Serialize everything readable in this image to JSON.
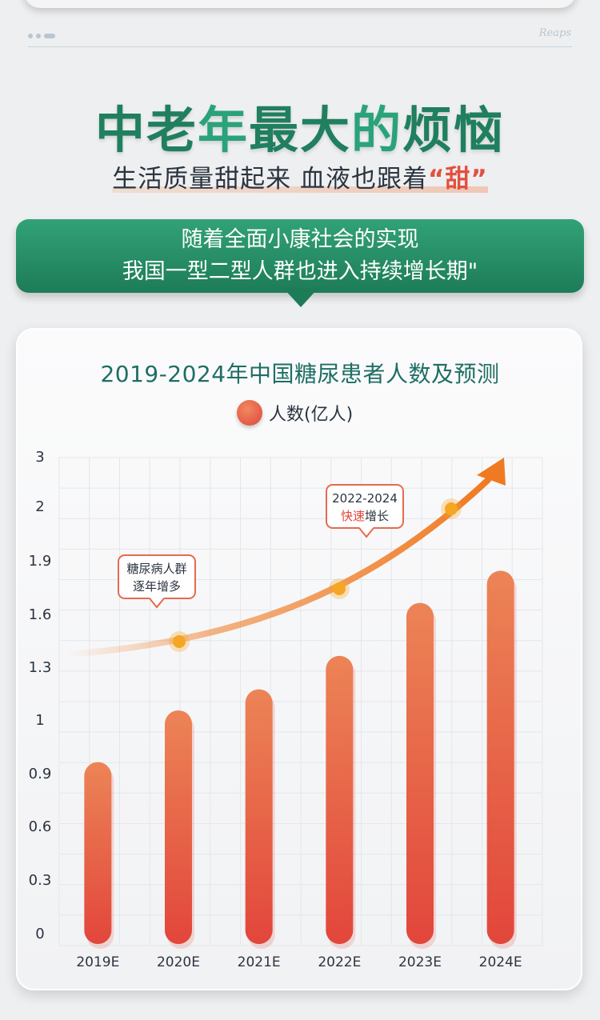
{
  "header": {
    "brand": "Reaps"
  },
  "headline": {
    "part1": "中老",
    "part2": "年",
    "part3": "最大",
    "part4": "的",
    "part5": "烦恼"
  },
  "subhead": {
    "text": "生活质量甜起来 血液也跟着",
    "highlight": "“甜”"
  },
  "banner": {
    "line1": "随着全面小康社会的实现",
    "line2": "我国一型二型人群也进入持续增长期\""
  },
  "chart_data": {
    "type": "bar",
    "title": "2019-2024年中国糖尿患者人数及预测",
    "categories": [
      "2019E",
      "2020E",
      "2021E",
      "2022E",
      "2023E",
      "2024E"
    ],
    "series": [
      {
        "name": "人数(亿人)",
        "values": [
          0.92,
          1.05,
          1.17,
          1.36,
          1.66,
          1.84
        ]
      }
    ],
    "y_ticks": [
      "3",
      "2",
      "1.9",
      "1.6",
      "1.3",
      "1",
      "0.9",
      "0.6",
      "0.3",
      "0"
    ],
    "grid": true,
    "legend": "top-center",
    "trend_arrow": true,
    "annotations": [
      {
        "line1": "糖尿病人群",
        "line2": "逐年增多",
        "highlight": ""
      },
      {
        "line1": "2022-2024",
        "line2_highlight": "快速",
        "line2": "增长"
      }
    ],
    "colors": {
      "bar_top": "#ec8456",
      "bar_bottom": "#e2463b",
      "arrow": "#f07a22",
      "dot": "#f5a623"
    }
  }
}
